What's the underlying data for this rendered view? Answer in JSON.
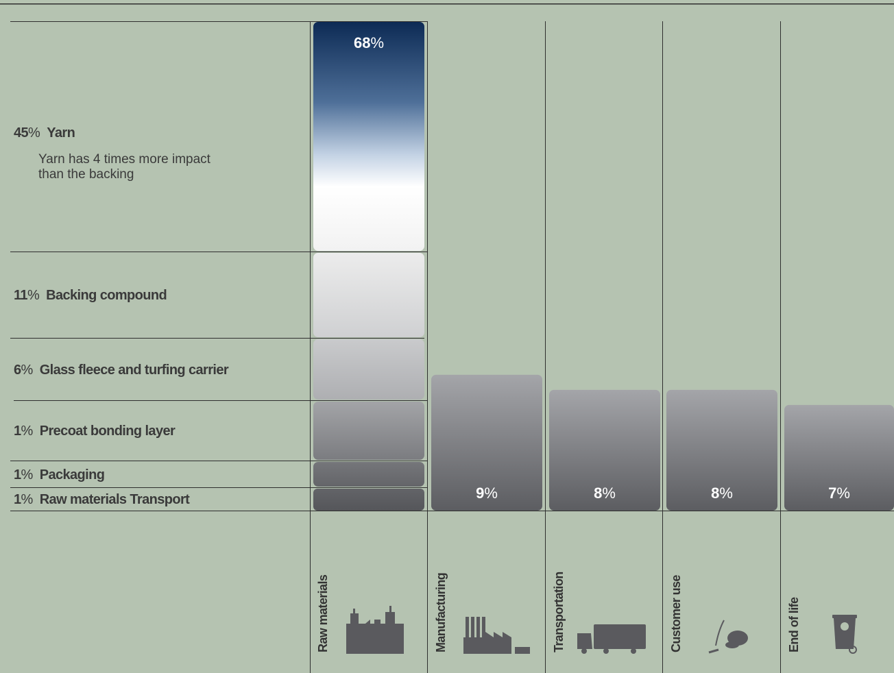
{
  "chart_data": {
    "type": "bar",
    "categories": [
      "Raw materials",
      "Manufacturing",
      "Transportation",
      "Customer use",
      "End of life"
    ],
    "values": [
      68,
      9,
      8,
      8,
      7
    ],
    "value_labels": [
      "68%",
      "9%",
      "8%",
      "8%",
      "7%"
    ],
    "stack_raw_materials": [
      {
        "value": 45,
        "name": "Yarn",
        "note": "Yarn has 4 times more impact than the backing"
      },
      {
        "value": 11,
        "name": "Backing compound"
      },
      {
        "value": 6,
        "name": "Glass fleece and turfing carrier"
      },
      {
        "value": 1,
        "name": "Precoat bonding layer"
      },
      {
        "value": 1,
        "name": "Packaging"
      },
      {
        "value": 1,
        "name": "Raw materials Transport"
      }
    ],
    "icons": [
      "factory-icon",
      "industrial-plant-icon",
      "truck-icon",
      "vacuum-cleaner-icon",
      "recycle-bin-icon"
    ],
    "colors": {
      "background": "#b5c3b1",
      "bar_gray_top": "#a4a5a9",
      "bar_gray_bottom": "#5c5d61",
      "gradient_top": "#0d2b55",
      "lines": "#2e2e2e"
    }
  }
}
